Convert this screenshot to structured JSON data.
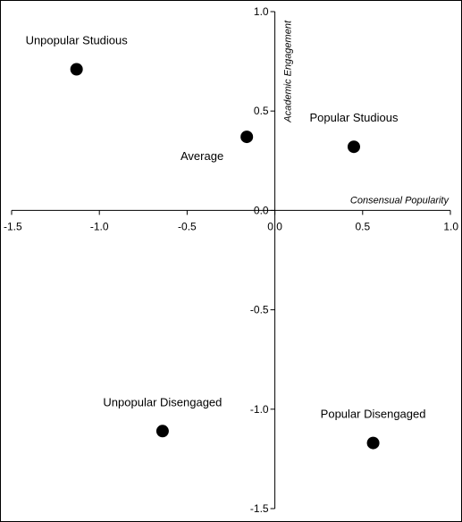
{
  "chart_data": {
    "type": "scatter",
    "xlabel": "Consensual Popularity",
    "ylabel": "Academic Engagement",
    "xlim": [
      -1.5,
      1.0
    ],
    "ylim": [
      -1.5,
      1.0
    ],
    "x_ticks": [
      "-1.5",
      "-1.0",
      "-0.5",
      "0.0",
      "0.5",
      "1.0"
    ],
    "x_tick_values": [
      -1.5,
      -1.0,
      -0.5,
      0.0,
      0.5,
      1.0
    ],
    "y_ticks": [
      "1.0",
      "0.5",
      "0.0",
      "-0.5",
      "-1.0",
      "-1.5"
    ],
    "y_tick_values": [
      1.0,
      0.5,
      0.0,
      -0.5,
      -1.0,
      -1.5
    ],
    "grid": false,
    "points": [
      {
        "label": "Unpopular Studious",
        "x": -1.13,
        "y": 0.71,
        "label_position": "above"
      },
      {
        "label": "Average",
        "x": -0.16,
        "y": 0.37,
        "label_position": "below-left"
      },
      {
        "label": "Popular Studious",
        "x": 0.45,
        "y": 0.32,
        "label_position": "above"
      },
      {
        "label": "Unpopular Disengaged",
        "x": -0.64,
        "y": -1.11,
        "label_position": "above"
      },
      {
        "label": "Popular Disengaged",
        "x": 0.56,
        "y": -1.17,
        "label_position": "above"
      }
    ],
    "colors": {
      "marker": "#000000",
      "axis": "#000000"
    }
  }
}
